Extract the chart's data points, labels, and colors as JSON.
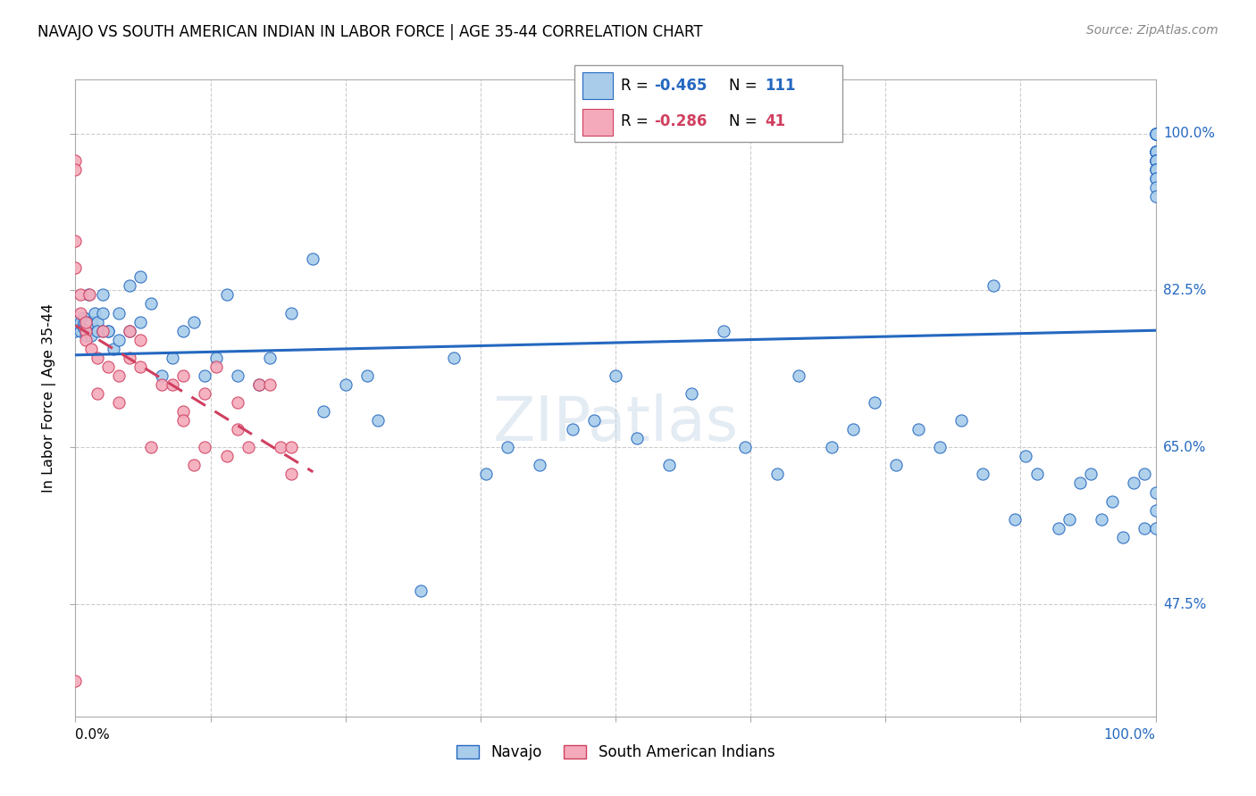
{
  "title": "NAVAJO VS SOUTH AMERICAN INDIAN IN LABOR FORCE | AGE 35-44 CORRELATION CHART",
  "source": "Source: ZipAtlas.com",
  "ylabel": "In Labor Force | Age 35-44",
  "ytick_labels": [
    "100.0%",
    "82.5%",
    "65.0%",
    "47.5%"
  ],
  "ytick_values": [
    1.0,
    0.825,
    0.65,
    0.475
  ],
  "xlim": [
    0.0,
    1.0
  ],
  "ylim": [
    0.35,
    1.06
  ],
  "navajo_R": "-0.465",
  "navajo_N": "111",
  "sa_R": "-0.286",
  "sa_N": "41",
  "navajo_color": "#A8CCEA",
  "sa_color": "#F4AABB",
  "navajo_line_color": "#2468C0",
  "sa_line_color": "#D04060",
  "navajo_scatter_x": [
    0.0,
    0.0,
    0.0,
    0.0,
    0.005,
    0.005,
    0.007,
    0.008,
    0.008,
    0.01,
    0.01,
    0.01,
    0.012,
    0.013,
    0.015,
    0.015,
    0.015,
    0.018,
    0.02,
    0.02,
    0.025,
    0.025,
    0.025,
    0.03,
    0.03,
    0.035,
    0.04,
    0.04,
    0.05,
    0.05,
    0.06,
    0.06,
    0.07,
    0.08,
    0.09,
    0.1,
    0.11,
    0.12,
    0.13,
    0.14,
    0.15,
    0.17,
    0.18,
    0.2,
    0.22,
    0.23,
    0.25,
    0.27,
    0.28,
    0.32,
    0.35,
    0.38,
    0.4,
    0.43,
    0.46,
    0.48,
    0.5,
    0.52,
    0.55,
    0.57,
    0.6,
    0.62,
    0.65,
    0.67,
    0.7,
    0.72,
    0.74,
    0.76,
    0.78,
    0.8,
    0.82,
    0.84,
    0.85,
    0.87,
    0.88,
    0.89,
    0.91,
    0.92,
    0.93,
    0.94,
    0.95,
    0.96,
    0.97,
    0.98,
    0.99,
    0.99,
    1.0,
    1.0,
    1.0,
    1.0,
    1.0,
    1.0,
    1.0,
    1.0,
    1.0,
    1.0,
    1.0,
    1.0,
    1.0,
    1.0,
    1.0,
    1.0,
    1.0,
    1.0,
    1.0,
    1.0,
    1.0,
    1.0,
    1.0,
    1.0,
    1.0
  ],
  "navajo_scatter_y": [
    0.78,
    0.79,
    0.785,
    0.79,
    0.78,
    0.79,
    0.785,
    0.79,
    0.795,
    0.78,
    0.775,
    0.785,
    0.82,
    0.79,
    0.775,
    0.79,
    0.79,
    0.8,
    0.79,
    0.78,
    0.82,
    0.78,
    0.8,
    0.78,
    0.78,
    0.76,
    0.8,
    0.77,
    0.83,
    0.78,
    0.84,
    0.79,
    0.81,
    0.73,
    0.75,
    0.78,
    0.79,
    0.73,
    0.75,
    0.82,
    0.73,
    0.72,
    0.75,
    0.8,
    0.86,
    0.69,
    0.72,
    0.73,
    0.68,
    0.49,
    0.75,
    0.62,
    0.65,
    0.63,
    0.67,
    0.68,
    0.73,
    0.66,
    0.63,
    0.71,
    0.78,
    0.65,
    0.62,
    0.73,
    0.65,
    0.67,
    0.7,
    0.63,
    0.67,
    0.65,
    0.68,
    0.62,
    0.83,
    0.57,
    0.64,
    0.62,
    0.56,
    0.57,
    0.61,
    0.62,
    0.57,
    0.59,
    0.55,
    0.61,
    0.56,
    0.62,
    1.0,
    1.0,
    1.0,
    1.0,
    1.0,
    1.0,
    0.98,
    0.98,
    0.98,
    0.98,
    0.98,
    0.97,
    0.97,
    0.97,
    0.97,
    0.96,
    0.96,
    0.96,
    0.95,
    0.95,
    0.94,
    0.93,
    0.56,
    0.58,
    0.6
  ],
  "sa_scatter_x": [
    0.0,
    0.0,
    0.0,
    0.0,
    0.0,
    0.005,
    0.005,
    0.01,
    0.01,
    0.01,
    0.013,
    0.015,
    0.02,
    0.02,
    0.025,
    0.03,
    0.04,
    0.04,
    0.05,
    0.05,
    0.06,
    0.06,
    0.07,
    0.08,
    0.09,
    0.1,
    0.1,
    0.11,
    0.12,
    0.13,
    0.14,
    0.15,
    0.15,
    0.16,
    0.17,
    0.18,
    0.19,
    0.2,
    0.2,
    0.1,
    0.12
  ],
  "sa_scatter_y": [
    0.97,
    0.96,
    0.88,
    0.85,
    0.39,
    0.82,
    0.8,
    0.78,
    0.79,
    0.77,
    0.82,
    0.76,
    0.75,
    0.71,
    0.78,
    0.74,
    0.7,
    0.73,
    0.78,
    0.75,
    0.74,
    0.77,
    0.65,
    0.72,
    0.72,
    0.73,
    0.69,
    0.63,
    0.71,
    0.74,
    0.64,
    0.67,
    0.7,
    0.65,
    0.72,
    0.72,
    0.65,
    0.65,
    0.62,
    0.68,
    0.65
  ]
}
